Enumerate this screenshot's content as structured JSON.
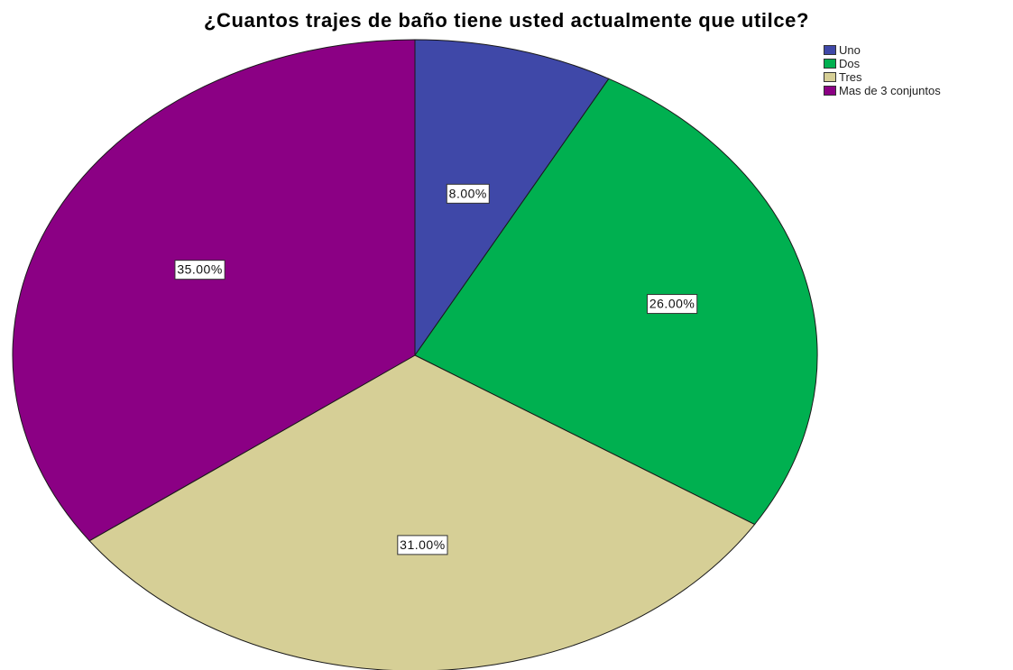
{
  "chart_data": {
    "type": "pie",
    "title": "¿Cuantos trajes de baño tiene usted actualmente que utilce?",
    "slices": [
      {
        "name": "Uno",
        "value": 8.0,
        "label": "8.00%",
        "color": "#3f48a8"
      },
      {
        "name": "Dos",
        "value": 26.0,
        "label": "26.00%",
        "color": "#00b050"
      },
      {
        "name": "Tres",
        "value": 31.0,
        "label": "31.00%",
        "color": "#d6cf96"
      },
      {
        "name": "Mas de 3 conjuntos",
        "value": 35.0,
        "label": "35.00%",
        "color": "#8b0084"
      }
    ],
    "legend": "top-right"
  }
}
